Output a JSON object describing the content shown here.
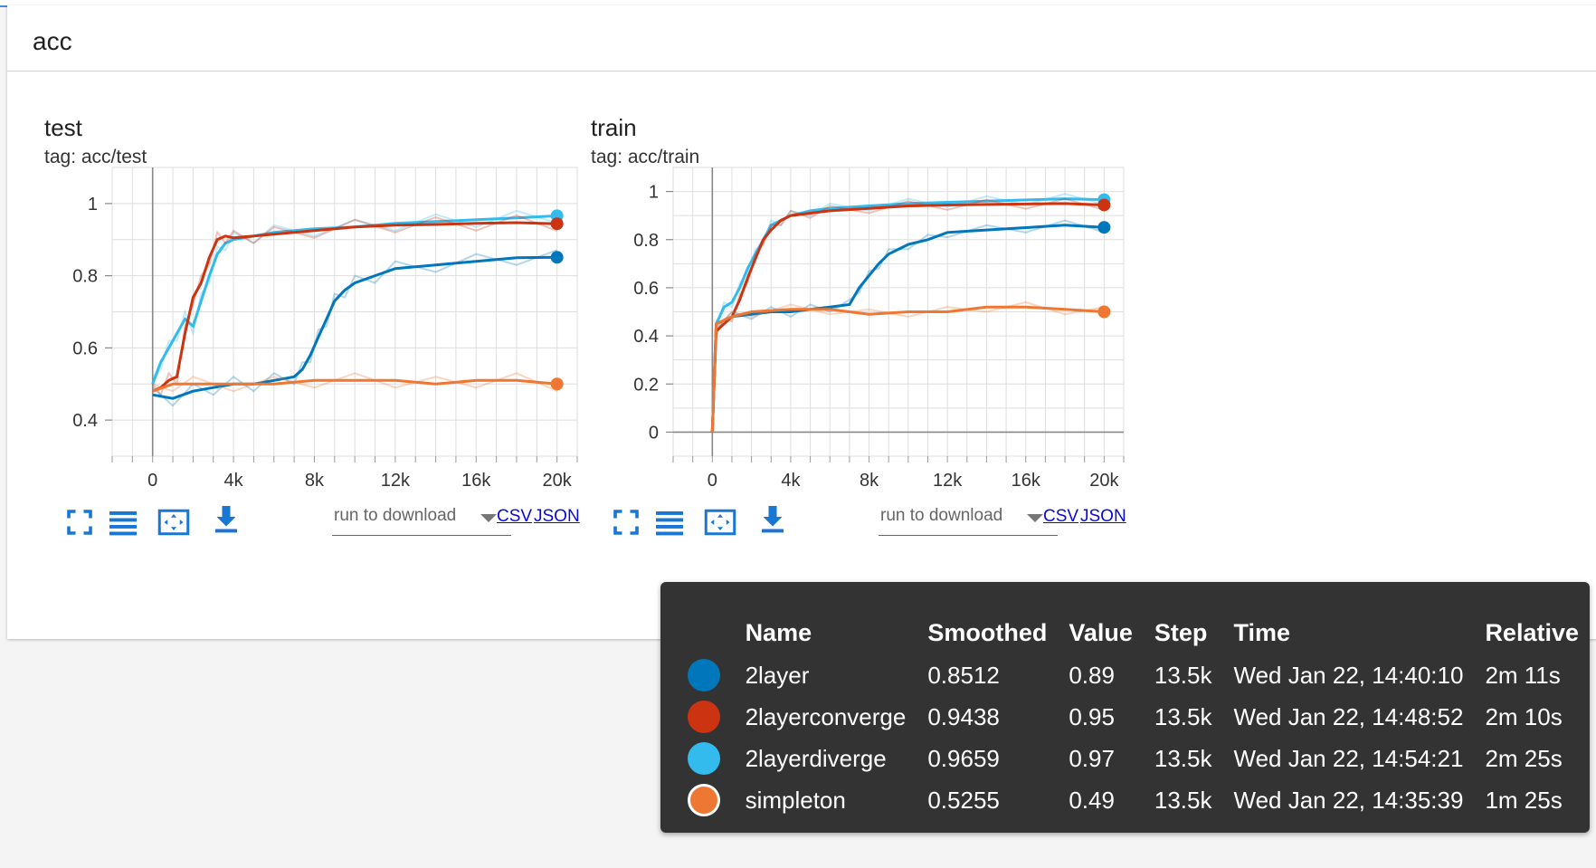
{
  "section": {
    "title": "acc"
  },
  "charts": [
    {
      "id": "test",
      "title": "test",
      "tag": "tag: acc/test",
      "download_placeholder": "run to download",
      "csv_label": "CSV",
      "json_label": "JSON"
    },
    {
      "id": "train",
      "title": "train",
      "tag": "tag: acc/train",
      "download_placeholder": "run to download",
      "csv_label": "CSV",
      "json_label": "JSON"
    }
  ],
  "chart_data": [
    {
      "type": "line",
      "title": "test",
      "xlabel": "",
      "ylabel": "",
      "xlim": [
        -2000,
        21000
      ],
      "ylim": [
        0.3,
        1.1
      ],
      "xticks": [
        0,
        4000,
        8000,
        12000,
        16000,
        20000
      ],
      "xtick_labels": [
        "0",
        "4k",
        "8k",
        "12k",
        "16k",
        "20k"
      ],
      "yticks": [
        0.4,
        0.6,
        0.8,
        1.0
      ],
      "ytick_labels": [
        "0.4",
        "0.6",
        "0.8",
        "1"
      ],
      "grid": true,
      "series": [
        {
          "name": "2layerdiverge",
          "color": "#33bbee",
          "x": [
            0,
            400,
            800,
            1200,
            1600,
            2000,
            2400,
            2800,
            3200,
            3600,
            4000,
            5000,
            6000,
            8000,
            10000,
            12000,
            14000,
            16000,
            18000,
            20000
          ],
          "y": [
            0.5,
            0.56,
            0.6,
            0.64,
            0.68,
            0.66,
            0.73,
            0.8,
            0.86,
            0.89,
            0.9,
            0.91,
            0.92,
            0.93,
            0.935,
            0.945,
            0.95,
            0.955,
            0.96,
            0.966
          ]
        },
        {
          "name": "2layerconverge",
          "color": "#cc3311",
          "x": [
            0,
            400,
            800,
            1200,
            1600,
            2000,
            2400,
            2800,
            3200,
            3600,
            4000,
            5000,
            6000,
            8000,
            10000,
            12000,
            14000,
            16000,
            18000,
            20000
          ],
          "y": [
            0.48,
            0.49,
            0.51,
            0.52,
            0.64,
            0.74,
            0.78,
            0.85,
            0.9,
            0.91,
            0.905,
            0.91,
            0.915,
            0.925,
            0.935,
            0.94,
            0.942,
            0.945,
            0.947,
            0.944
          ]
        },
        {
          "name": "2layer",
          "color": "#0077bb",
          "x": [
            0,
            1000,
            2000,
            3000,
            4000,
            5000,
            6000,
            7000,
            7400,
            7800,
            8200,
            8600,
            9000,
            9500,
            10000,
            11000,
            12000,
            14000,
            16000,
            18000,
            20000
          ],
          "y": [
            0.47,
            0.46,
            0.48,
            0.49,
            0.5,
            0.5,
            0.51,
            0.52,
            0.54,
            0.58,
            0.63,
            0.68,
            0.73,
            0.76,
            0.78,
            0.8,
            0.82,
            0.83,
            0.84,
            0.85,
            0.851
          ]
        },
        {
          "name": "simpleton",
          "color": "#ee7733",
          "x": [
            0,
            1000,
            2000,
            4000,
            6000,
            8000,
            10000,
            12000,
            14000,
            16000,
            18000,
            20000
          ],
          "y": [
            0.48,
            0.5,
            0.5,
            0.5,
            0.5,
            0.51,
            0.51,
            0.51,
            0.5,
            0.51,
            0.51,
            0.5
          ]
        }
      ]
    },
    {
      "type": "line",
      "title": "train",
      "xlabel": "",
      "ylabel": "",
      "xlim": [
        -2000,
        21000
      ],
      "ylim": [
        -0.1,
        1.1
      ],
      "xticks": [
        0,
        4000,
        8000,
        12000,
        16000,
        20000
      ],
      "xtick_labels": [
        "0",
        "4k",
        "8k",
        "12k",
        "16k",
        "20k"
      ],
      "yticks": [
        0,
        0.2,
        0.4,
        0.6,
        0.8,
        1.0
      ],
      "ytick_labels": [
        "0",
        "0.2",
        "0.4",
        "0.6",
        "0.8",
        "1"
      ],
      "grid": true,
      "series": [
        {
          "name": "2layerdiverge",
          "color": "#33bbee",
          "x": [
            0,
            200,
            600,
            1000,
            1400,
            1800,
            2200,
            2600,
            3000,
            3500,
            4000,
            5000,
            6000,
            8000,
            10000,
            12000,
            14000,
            16000,
            18000,
            20000
          ],
          "y": [
            0.0,
            0.45,
            0.52,
            0.54,
            0.6,
            0.68,
            0.74,
            0.8,
            0.86,
            0.88,
            0.9,
            0.92,
            0.93,
            0.94,
            0.95,
            0.955,
            0.96,
            0.965,
            0.97,
            0.966
          ]
        },
        {
          "name": "2layerconverge",
          "color": "#cc3311",
          "x": [
            0,
            200,
            600,
            1000,
            1400,
            1800,
            2200,
            2600,
            3000,
            3500,
            4000,
            5000,
            6000,
            8000,
            10000,
            12000,
            14000,
            16000,
            18000,
            20000
          ],
          "y": [
            0.0,
            0.42,
            0.45,
            0.48,
            0.55,
            0.64,
            0.72,
            0.8,
            0.84,
            0.88,
            0.9,
            0.91,
            0.92,
            0.93,
            0.94,
            0.944,
            0.946,
            0.948,
            0.95,
            0.944
          ]
        },
        {
          "name": "2layer",
          "color": "#0077bb",
          "x": [
            0,
            200,
            1000,
            2000,
            3000,
            4000,
            5000,
            6000,
            7000,
            7500,
            8000,
            8500,
            9000,
            10000,
            11000,
            12000,
            14000,
            16000,
            18000,
            20000
          ],
          "y": [
            0.0,
            0.45,
            0.48,
            0.49,
            0.5,
            0.5,
            0.51,
            0.52,
            0.53,
            0.6,
            0.65,
            0.7,
            0.74,
            0.78,
            0.8,
            0.83,
            0.84,
            0.85,
            0.86,
            0.851
          ]
        },
        {
          "name": "simpleton",
          "color": "#ee7733",
          "x": [
            0,
            200,
            1000,
            2000,
            4000,
            6000,
            8000,
            10000,
            12000,
            14000,
            16000,
            18000,
            20000
          ],
          "y": [
            0.0,
            0.45,
            0.48,
            0.5,
            0.51,
            0.51,
            0.49,
            0.5,
            0.5,
            0.52,
            0.52,
            0.51,
            0.5
          ]
        }
      ]
    }
  ],
  "tooltip": {
    "headers": {
      "name": "Name",
      "smoothed": "Smoothed",
      "value": "Value",
      "step": "Step",
      "time": "Time",
      "relative": "Relative"
    },
    "rows": [
      {
        "color": "#0077bb",
        "name": "2layer",
        "smoothed": "0.8512",
        "value": "0.89",
        "step": "13.5k",
        "time": "Wed Jan 22, 14:40:10",
        "relative": "2m 11s"
      },
      {
        "color": "#cc3311",
        "name": "2layerconverge",
        "smoothed": "0.9438",
        "value": "0.95",
        "step": "13.5k",
        "time": "Wed Jan 22, 14:48:52",
        "relative": "2m 10s"
      },
      {
        "color": "#33bbee",
        "name": "2layerdiverge",
        "smoothed": "0.9659",
        "value": "0.97",
        "step": "13.5k",
        "time": "Wed Jan 22, 14:54:21",
        "relative": "2m 25s"
      },
      {
        "color": "#ee7733",
        "name": "simpleton",
        "smoothed": "0.5255",
        "value": "0.49",
        "step": "13.5k",
        "time": "Wed Jan 22, 14:35:39",
        "relative": "1m 25s"
      }
    ]
  }
}
